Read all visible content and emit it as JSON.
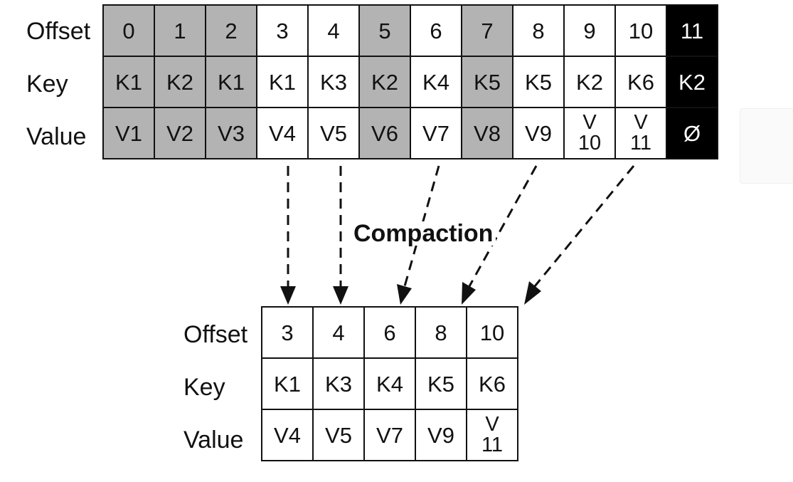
{
  "diagram_title": "Compaction",
  "row_labels": {
    "offset": "Offset",
    "key": "Key",
    "value": "Value"
  },
  "colors": {
    "stale_fill": "#b3b3b3",
    "tombstone_fill": "#000000",
    "tombstone_text": "#ffffff",
    "border": "#111111"
  },
  "before_compaction": [
    {
      "offset": "0",
      "key": "K1",
      "value": "V1",
      "state": "stale"
    },
    {
      "offset": "1",
      "key": "K2",
      "value": "V2",
      "state": "stale"
    },
    {
      "offset": "2",
      "key": "K1",
      "value": "V3",
      "state": "stale"
    },
    {
      "offset": "3",
      "key": "K1",
      "value": "V4",
      "state": "kept"
    },
    {
      "offset": "4",
      "key": "K3",
      "value": "V5",
      "state": "kept"
    },
    {
      "offset": "5",
      "key": "K2",
      "value": "V6",
      "state": "stale"
    },
    {
      "offset": "6",
      "key": "K4",
      "value": "V7",
      "state": "kept"
    },
    {
      "offset": "7",
      "key": "K5",
      "value": "V8",
      "state": "stale"
    },
    {
      "offset": "8",
      "key": "K5",
      "value": "V9",
      "state": "kept"
    },
    {
      "offset": "9",
      "key": "K2",
      "value": "V\n10",
      "state": "stale-unshaded"
    },
    {
      "offset": "10",
      "key": "K6",
      "value": "V\n11",
      "state": "kept"
    },
    {
      "offset": "11",
      "key": "K2",
      "value": "Ø",
      "state": "tombstone"
    }
  ],
  "after_compaction": [
    {
      "offset": "3",
      "key": "K1",
      "value": "V4"
    },
    {
      "offset": "4",
      "key": "K3",
      "value": "V5"
    },
    {
      "offset": "6",
      "key": "K4",
      "value": "V7"
    },
    {
      "offset": "8",
      "key": "K5",
      "value": "V9"
    },
    {
      "offset": "10",
      "key": "K6",
      "value": "V\n11"
    }
  ]
}
